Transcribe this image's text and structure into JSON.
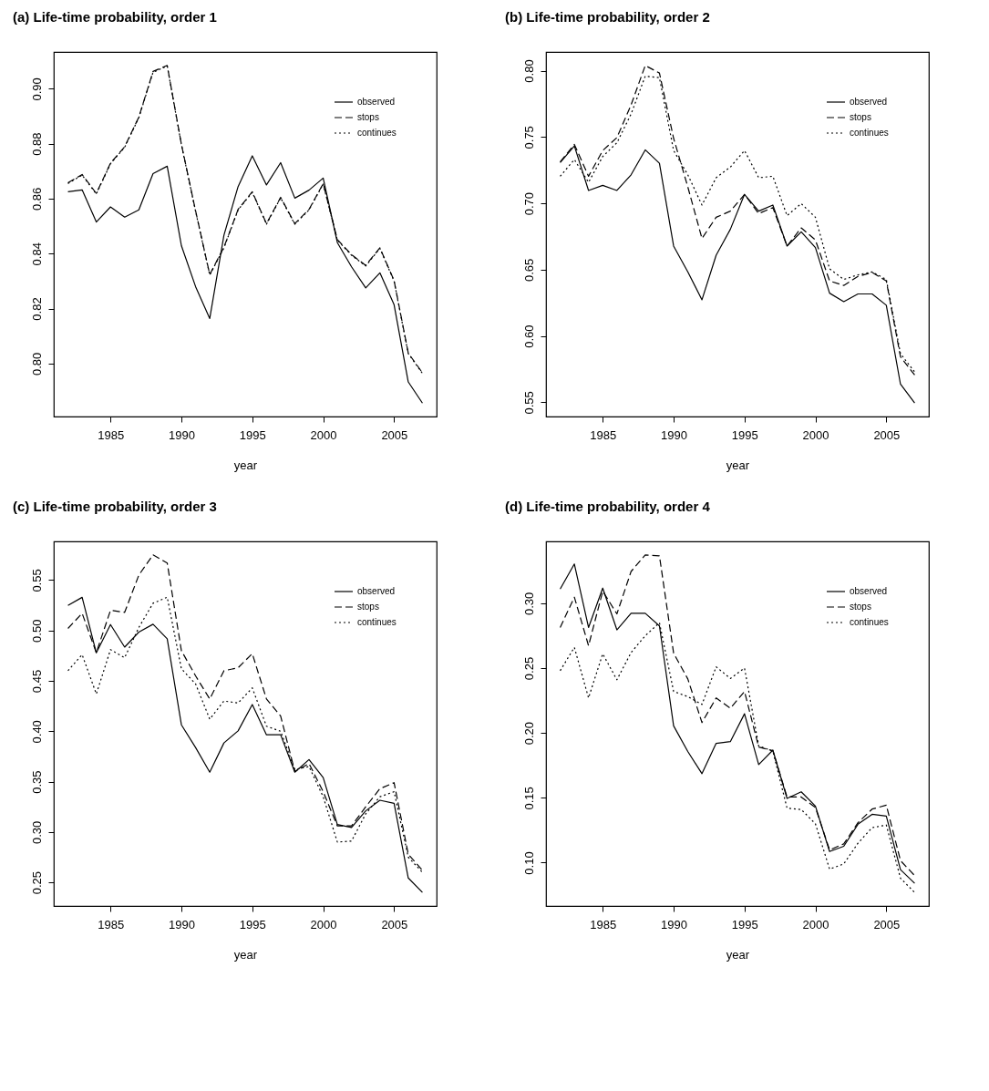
{
  "chart_data": [
    {
      "type": "line",
      "title": "(a) Life-time probability, order 1",
      "xlabel": "year",
      "legend": "top right",
      "grid": false,
      "xlim": [
        1981,
        2008
      ],
      "xticks": [
        1985,
        1990,
        1995,
        2000,
        2005
      ],
      "ylim": [
        0.7807,
        0.9134
      ],
      "yticks": [
        {
          "value": 0.8,
          "label": "0.80"
        },
        {
          "value": 0.82,
          "label": "0.82"
        },
        {
          "value": 0.84,
          "label": "0.84"
        },
        {
          "value": 0.86,
          "label": "0.86"
        },
        {
          "value": 0.88,
          "label": "0.88"
        },
        {
          "value": 0.9,
          "label": "0.90"
        }
      ],
      "x": [
        1982,
        1983,
        1984,
        1985,
        1986,
        1987,
        1988,
        1989,
        1990,
        1991,
        1992,
        1993,
        1994,
        1995,
        1996,
        1997,
        1998,
        1999,
        2000,
        2001,
        2002,
        2003,
        2004,
        2005,
        2006,
        2007
      ],
      "series": [
        {
          "name": "observed",
          "color": "#000000",
          "line_style": "solid",
          "values": [
            0.8625,
            0.8632,
            0.8515,
            0.857,
            0.8533,
            0.8559,
            0.8691,
            0.8718,
            0.8429,
            0.828,
            0.8164,
            0.8467,
            0.8644,
            0.8756,
            0.865,
            0.8731,
            0.8602,
            0.8631,
            0.8675,
            0.844,
            0.8352,
            0.8275,
            0.833,
            0.8214,
            0.7933,
            0.7856
          ]
        },
        {
          "name": "stops",
          "color": "#000000",
          "line_style": "dashed",
          "values": [
            0.8658,
            0.8688,
            0.8619,
            0.8729,
            0.8789,
            0.8897,
            0.9063,
            0.9085,
            0.8798,
            0.8556,
            0.8324,
            0.8423,
            0.8561,
            0.8625,
            0.8509,
            0.8605,
            0.8509,
            0.8561,
            0.8655,
            0.8451,
            0.8396,
            0.8357,
            0.8421,
            0.8302,
            0.8038,
            0.7966
          ]
        },
        {
          "name": "continues",
          "color": "#000000",
          "line_style": "dotted",
          "values": [
            0.8655,
            0.8686,
            0.8617,
            0.8727,
            0.8787,
            0.8895,
            0.906,
            0.9083,
            0.8796,
            0.8554,
            0.8322,
            0.8421,
            0.8559,
            0.8623,
            0.8507,
            0.8603,
            0.8507,
            0.8559,
            0.8653,
            0.8449,
            0.8394,
            0.8355,
            0.8419,
            0.83,
            0.8036,
            0.7964
          ]
        }
      ]
    },
    {
      "type": "line",
      "title": "(b) Life-time probability, order 2",
      "xlabel": "year",
      "legend": "top right",
      "grid": false,
      "xlim": [
        1981,
        2008
      ],
      "xticks": [
        1985,
        1990,
        1995,
        2000,
        2005
      ],
      "ylim": [
        0.5393,
        0.8141
      ],
      "yticks": [
        {
          "value": 0.55,
          "label": "0.55"
        },
        {
          "value": 0.6,
          "label": "0.60"
        },
        {
          "value": 0.65,
          "label": "0.65"
        },
        {
          "value": 0.7,
          "label": "0.70"
        },
        {
          "value": 0.75,
          "label": "0.75"
        },
        {
          "value": 0.8,
          "label": "0.80"
        }
      ],
      "x": [
        1982,
        1983,
        1984,
        1985,
        1986,
        1987,
        1988,
        1989,
        1990,
        1991,
        1992,
        1993,
        1994,
        1995,
        1996,
        1997,
        1998,
        1999,
        2000,
        2001,
        2002,
        2003,
        2004,
        2005,
        2006,
        2007
      ],
      "series": [
        {
          "name": "observed",
          "color": "#000000",
          "line_style": "solid",
          "values": [
            0.7307,
            0.7433,
            0.7097,
            0.7135,
            0.7097,
            0.7215,
            0.7403,
            0.7302,
            0.6678,
            0.6484,
            0.6273,
            0.6609,
            0.6804,
            0.7067,
            0.6941,
            0.6987,
            0.6678,
            0.6785,
            0.6667,
            0.6323,
            0.6259,
            0.6317,
            0.6317,
            0.6232,
            0.5637,
            0.5495
          ]
        },
        {
          "name": "stops",
          "color": "#000000",
          "line_style": "dashed",
          "values": [
            0.7312,
            0.7444,
            0.7204,
            0.7398,
            0.7495,
            0.7742,
            0.8039,
            0.7982,
            0.749,
            0.7124,
            0.6735,
            0.6895,
            0.6941,
            0.7067,
            0.6923,
            0.6968,
            0.6678,
            0.6815,
            0.6724,
            0.6415,
            0.6381,
            0.6449,
            0.6479,
            0.6415,
            0.5843,
            0.5706
          ]
        },
        {
          "name": "continues",
          "color": "#000000",
          "line_style": "dotted",
          "values": [
            0.7204,
            0.733,
            0.7158,
            0.7353,
            0.7456,
            0.7673,
            0.7959,
            0.7947,
            0.7398,
            0.7215,
            0.6987,
            0.7193,
            0.7273,
            0.7398,
            0.7193,
            0.7204,
            0.6907,
            0.6998,
            0.6895,
            0.6506,
            0.6426,
            0.6461,
            0.6483,
            0.6426,
            0.5866,
            0.5729
          ]
        }
      ]
    },
    {
      "type": "line",
      "title": "(c) Life-time probability, order 3",
      "xlabel": "year",
      "legend": "top right",
      "grid": false,
      "xlim": [
        1981,
        2008
      ],
      "xticks": [
        1985,
        1990,
        1995,
        2000,
        2005
      ],
      "ylim": [
        0.2266,
        0.5884
      ],
      "yticks": [
        {
          "value": 0.25,
          "label": "0.25"
        },
        {
          "value": 0.3,
          "label": "0.30"
        },
        {
          "value": 0.35,
          "label": "0.35"
        },
        {
          "value": 0.4,
          "label": "0.40"
        },
        {
          "value": 0.45,
          "label": "0.45"
        },
        {
          "value": 0.5,
          "label": "0.50"
        },
        {
          "value": 0.55,
          "label": "0.55"
        }
      ],
      "x": [
        1982,
        1983,
        1984,
        1985,
        1986,
        1987,
        1988,
        1989,
        1990,
        1991,
        1992,
        1993,
        1994,
        1995,
        1996,
        1997,
        1998,
        1999,
        2000,
        2001,
        2002,
        2003,
        2004,
        2005,
        2006,
        2007
      ],
      "series": [
        {
          "name": "observed",
          "color": "#000000",
          "line_style": "solid",
          "values": [
            0.5248,
            0.5329,
            0.4778,
            0.5059,
            0.4835,
            0.4984,
            0.5062,
            0.4918,
            0.4064,
            0.3839,
            0.3594,
            0.3884,
            0.4004,
            0.4265,
            0.3965,
            0.3965,
            0.3594,
            0.3719,
            0.354,
            0.3075,
            0.3045,
            0.321,
            0.3315,
            0.3285,
            0.2544,
            0.24
          ]
        },
        {
          "name": "stops",
          "color": "#000000",
          "line_style": "dashed",
          "values": [
            0.502,
            0.517,
            0.478,
            0.52,
            0.518,
            0.555,
            0.575,
            0.567,
            0.48,
            0.455,
            0.432,
            0.46,
            0.463,
            0.477,
            0.432,
            0.415,
            0.36,
            0.368,
            0.34,
            0.306,
            0.306,
            0.325,
            0.343,
            0.349,
            0.278,
            0.262
          ]
        },
        {
          "name": "continues",
          "color": "#000000",
          "line_style": "dotted",
          "values": [
            0.46,
            0.476,
            0.437,
            0.481,
            0.473,
            0.503,
            0.527,
            0.533,
            0.462,
            0.447,
            0.412,
            0.43,
            0.428,
            0.443,
            0.405,
            0.4,
            0.362,
            0.365,
            0.335,
            0.29,
            0.291,
            0.318,
            0.335,
            0.34,
            0.275,
            0.26
          ]
        }
      ]
    },
    {
      "type": "line",
      "title": "(d) Life-time probability, order 4",
      "xlabel": "year",
      "legend": "top right",
      "grid": false,
      "xlim": [
        1981,
        2008
      ],
      "xticks": [
        1985,
        1990,
        1995,
        2000,
        2005
      ],
      "ylim": [
        0.0666,
        0.3477
      ],
      "yticks": [
        {
          "value": 0.1,
          "label": "0.10"
        },
        {
          "value": 0.15,
          "label": "0.15"
        },
        {
          "value": 0.2,
          "label": "0.20"
        },
        {
          "value": 0.25,
          "label": "0.25"
        },
        {
          "value": 0.3,
          "label": "0.30"
        }
      ],
      "x": [
        1982,
        1983,
        1984,
        1985,
        1986,
        1987,
        1988,
        1989,
        1990,
        1991,
        1992,
        1993,
        1994,
        1995,
        1996,
        1997,
        1998,
        1999,
        2000,
        2001,
        2002,
        2003,
        2004,
        2005,
        2006,
        2007
      ],
      "series": [
        {
          "name": "observed",
          "color": "#000000",
          "line_style": "solid",
          "values": [
            0.311,
            0.3303,
            0.2813,
            0.3117,
            0.2795,
            0.2923,
            0.2923,
            0.2825,
            0.2055,
            0.1857,
            0.1686,
            0.192,
            0.1933,
            0.2148,
            0.1756,
            0.1868,
            0.1495,
            0.1546,
            0.1436,
            0.1086,
            0.1126,
            0.1296,
            0.1373,
            0.1359,
            0.0946,
            0.0841
          ]
        },
        {
          "name": "stops",
          "color": "#000000",
          "line_style": "dashed",
          "values": [
            0.2813,
            0.3047,
            0.2673,
            0.3093,
            0.2918,
            0.3245,
            0.3373,
            0.3366,
            0.2615,
            0.2417,
            0.208,
            0.227,
            0.219,
            0.232,
            0.1891,
            0.1863,
            0.1506,
            0.1506,
            0.1425,
            0.1098,
            0.1145,
            0.1308,
            0.1413,
            0.1443,
            0.1016,
            0.09
          ]
        },
        {
          "name": "continues",
          "color": "#000000",
          "line_style": "dotted",
          "values": [
            0.248,
            0.266,
            0.227,
            0.261,
            0.241,
            0.262,
            0.275,
            0.285,
            0.232,
            0.228,
            0.222,
            0.251,
            0.242,
            0.25,
            0.19,
            0.186,
            0.142,
            0.141,
            0.13,
            0.095,
            0.099,
            0.115,
            0.127,
            0.129,
            0.088,
            0.077
          ]
        }
      ]
    }
  ]
}
